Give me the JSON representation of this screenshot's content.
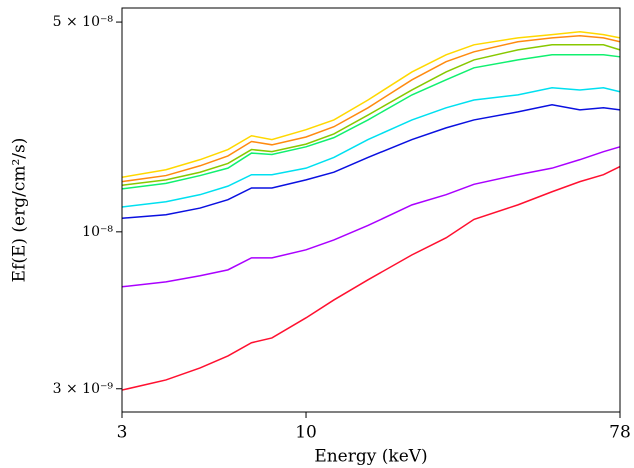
{
  "chart_data": {
    "type": "line",
    "xlabel": "Energy (keV)",
    "ylabel": "Ef(E) (erg/cm²/s)",
    "xscale": "log",
    "yscale": "log",
    "xlim": [
      3,
      78
    ],
    "ylim": [
      2.51e-09,
      5.57e-08
    ],
    "xticks": [
      3,
      10,
      78
    ],
    "yticks": [
      {
        "value": 3e-09,
        "label": "3 × 10⁻⁹"
      },
      {
        "value": 1e-08,
        "label": "10⁻⁸"
      },
      {
        "value": 5e-08,
        "label": "5 × 10⁻⁸"
      }
    ],
    "x": [
      3,
      4,
      5,
      6,
      7,
      8,
      10,
      12,
      15,
      20,
      25,
      30,
      40,
      50,
      60,
      70,
      78
    ],
    "series": [
      {
        "color": "#ff1030",
        "values": [
          2.97e-09,
          3.21e-09,
          3.52e-09,
          3.86e-09,
          4.27e-09,
          4.43e-09,
          5.17e-09,
          5.93e-09,
          6.92e-09,
          8.38e-09,
          9.55e-09,
          1.1e-08,
          1.23e-08,
          1.36e-08,
          1.47e-08,
          1.55e-08,
          1.65e-08
        ]
      },
      {
        "color": "#aa00ff",
        "values": [
          6.56e-09,
          6.81e-09,
          7.14e-09,
          7.47e-09,
          8.19e-09,
          8.19e-09,
          8.71e-09,
          9.4e-09,
          1.05e-08,
          1.23e-08,
          1.33e-08,
          1.44e-08,
          1.55e-08,
          1.63e-08,
          1.74e-08,
          1.85e-08,
          1.92e-08
        ]
      },
      {
        "color": "#0a10e0",
        "values": [
          1.11e-08,
          1.14e-08,
          1.2e-08,
          1.28e-08,
          1.4e-08,
          1.4e-08,
          1.49e-08,
          1.58e-08,
          1.77e-08,
          2.03e-08,
          2.22e-08,
          2.36e-08,
          2.51e-08,
          2.65e-08,
          2.55e-08,
          2.59e-08,
          2.55e-08
        ]
      },
      {
        "color": "#00e0f0",
        "values": [
          1.21e-08,
          1.26e-08,
          1.33e-08,
          1.42e-08,
          1.55e-08,
          1.55e-08,
          1.63e-08,
          1.77e-08,
          2.03e-08,
          2.36e-08,
          2.59e-08,
          2.75e-08,
          2.86e-08,
          3.02e-08,
          2.97e-08,
          3.02e-08,
          2.93e-08
        ]
      },
      {
        "color": "#10f070",
        "values": [
          1.39e-08,
          1.45e-08,
          1.54e-08,
          1.63e-08,
          1.83e-08,
          1.81e-08,
          1.92e-08,
          2.06e-08,
          2.36e-08,
          2.86e-08,
          3.21e-08,
          3.52e-08,
          3.74e-08,
          3.89e-08,
          3.89e-08,
          3.89e-08,
          3.83e-08
        ]
      },
      {
        "color": "#88c800",
        "values": [
          1.43e-08,
          1.49e-08,
          1.58e-08,
          1.69e-08,
          1.88e-08,
          1.85e-08,
          1.96e-08,
          2.12e-08,
          2.45e-08,
          2.97e-08,
          3.41e-08,
          3.74e-08,
          4.04e-08,
          4.2e-08,
          4.2e-08,
          4.2e-08,
          4.04e-08
        ]
      },
      {
        "color": "#ff8a10",
        "values": [
          1.47e-08,
          1.54e-08,
          1.66e-08,
          1.79e-08,
          2e-08,
          1.95e-08,
          2.07e-08,
          2.24e-08,
          2.59e-08,
          3.21e-08,
          3.69e-08,
          3.98e-08,
          4.3e-08,
          4.43e-08,
          4.5e-08,
          4.43e-08,
          4.3e-08
        ]
      },
      {
        "color": "#ffd800",
        "values": [
          1.52e-08,
          1.61e-08,
          1.74e-08,
          1.88e-08,
          2.09e-08,
          2.03e-08,
          2.19e-08,
          2.36e-08,
          2.75e-08,
          3.41e-08,
          3.89e-08,
          4.2e-08,
          4.43e-08,
          4.54e-08,
          4.64e-08,
          4.54e-08,
          4.43e-08
        ]
      }
    ]
  }
}
